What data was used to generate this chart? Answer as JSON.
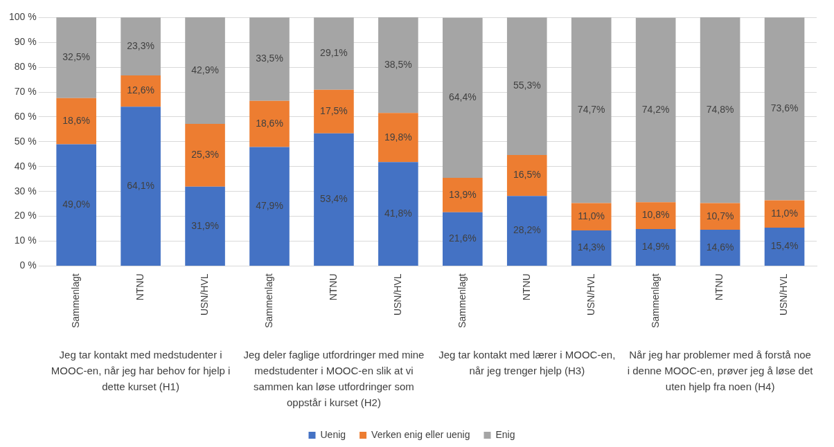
{
  "chart_data": {
    "type": "bar",
    "stacked": true,
    "categories": [
      "Sammenlagt",
      "NTNU",
      "USN/HVL",
      "Sammenlagt",
      "NTNU",
      "USN/HVL",
      "Sammenlagt",
      "NTNU",
      "USN/HVL",
      "Sammenlagt",
      "NTNU",
      "USN/HVL"
    ],
    "series": [
      {
        "name": "Uenig",
        "color": "#4472c4",
        "values": [
          49.0,
          64.1,
          31.9,
          47.9,
          53.4,
          41.8,
          21.6,
          28.2,
          14.3,
          14.9,
          14.6,
          15.4
        ],
        "value_labels": [
          "49,0%",
          "64,1%",
          "31,9%",
          "47,9%",
          "53,4%",
          "41,8%",
          "21,6%",
          "28,2%",
          "14,3%",
          "14,9%",
          "14,6%",
          "15,4%"
        ]
      },
      {
        "name": "Verken enig eller uenig",
        "color": "#ed7d31",
        "values": [
          18.6,
          12.6,
          25.3,
          18.6,
          17.5,
          19.8,
          13.9,
          16.5,
          11.0,
          10.8,
          10.7,
          11.0
        ],
        "value_labels": [
          "18,6%",
          "12,6%",
          "25,3%",
          "18,6%",
          "17,5%",
          "19,8%",
          "13,9%",
          "16,5%",
          "11,0%",
          "10,8%",
          "10,7%",
          "11,0%"
        ]
      },
      {
        "name": "Enig",
        "color": "#a5a5a5",
        "values": [
          32.5,
          23.3,
          42.9,
          33.5,
          29.1,
          38.5,
          64.4,
          55.3,
          74.7,
          74.2,
          74.8,
          73.6
        ],
        "value_labels": [
          "32,5%",
          "23,3%",
          "42,9%",
          "33,5%",
          "29,1%",
          "38,5%",
          "64,4%",
          "55,3%",
          "74,7%",
          "74,2%",
          "74,8%",
          "73,6%"
        ]
      }
    ],
    "ylim": [
      0,
      100.1
    ],
    "yticks": [
      {
        "value": 0,
        "label": "0 %"
      },
      {
        "value": 10,
        "label": "10 %"
      },
      {
        "value": 20,
        "label": "20 %"
      },
      {
        "value": 30,
        "label": "30 %"
      },
      {
        "value": 40,
        "label": "40 %"
      },
      {
        "value": 50,
        "label": "50 %"
      },
      {
        "value": 60,
        "label": "60 %"
      },
      {
        "value": 70,
        "label": "70 %"
      },
      {
        "value": 80,
        "label": "80 %"
      },
      {
        "value": 90,
        "label": "90 %"
      },
      {
        "value": 100,
        "label": "100 %"
      }
    ],
    "grid": "y",
    "legend": "bottom",
    "annotations": [
      "Jeg tar kontakt med medstudenter i MOOC-en, når jeg har behov for hjelp i dette kurset (H1)",
      "Jeg deler faglige utfordringer med mine medstudenter i MOOC-en slik at vi sammen kan løse utfordringer som oppstår i kurset (H2)",
      "Jeg tar kontakt med lærer i MOOC-en, når jeg trenger hjelp (H3)",
      "Når jeg har problemer med å forstå noe i denne MOOC-en, prøver jeg å løse det uten hjelp fra noen (H4)"
    ]
  }
}
